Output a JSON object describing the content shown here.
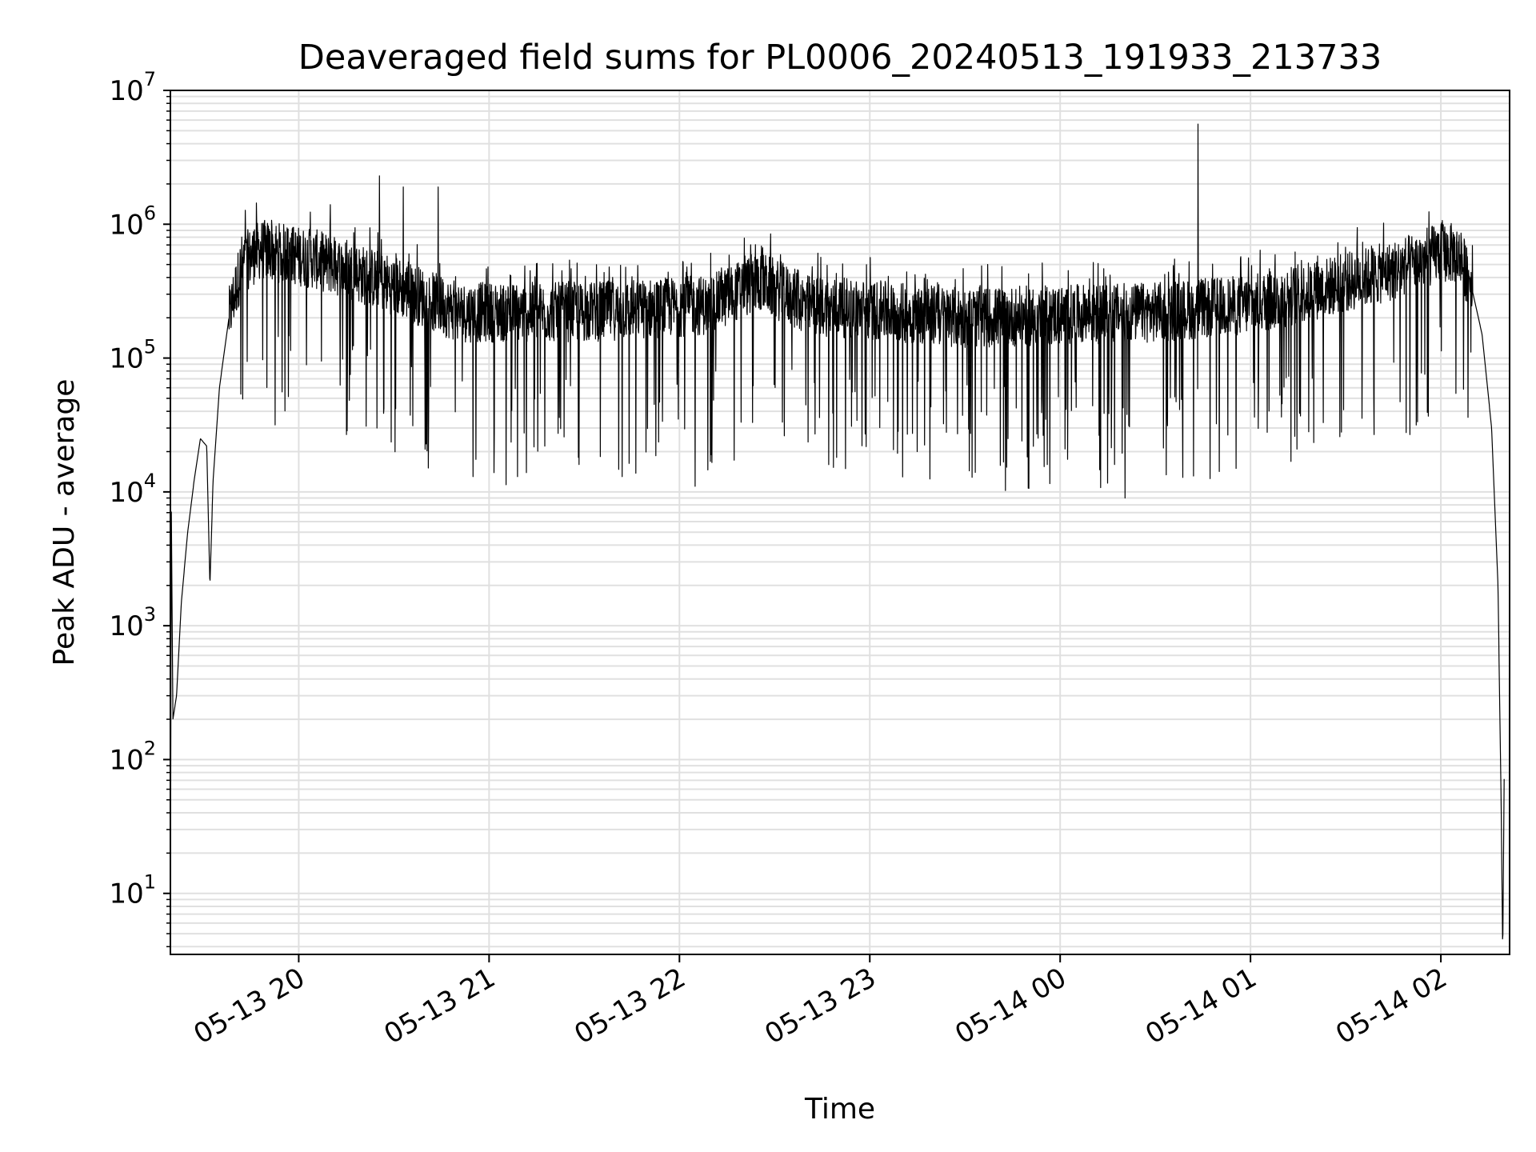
{
  "chart_data": {
    "type": "line",
    "title": "Deaveraged field sums for PL0006_20240513_191933_213733",
    "xlabel": "Time",
    "ylabel": "Peak ADU - average",
    "x_ticks": [
      "05-13 20",
      "05-13 21",
      "05-13 22",
      "05-13 23",
      "05-14 00",
      "05-14 01",
      "05-14 02"
    ],
    "y_scale": "log",
    "y_ticks": [
      {
        "base": "10",
        "exp": "1"
      },
      {
        "base": "10",
        "exp": "2"
      },
      {
        "base": "10",
        "exp": "3"
      },
      {
        "base": "10",
        "exp": "4"
      },
      {
        "base": "10",
        "exp": "5"
      },
      {
        "base": "10",
        "exp": "6"
      },
      {
        "base": "10",
        "exp": "7"
      }
    ],
    "xlim": [
      "2024-05-13 19:19:33",
      "2024-05-14 02:21:40"
    ],
    "ylim": [
      3.5,
      10000000
    ],
    "grid": true,
    "line_color": "#000000",
    "grid_color": "#e0e0e0",
    "profile": [
      {
        "t": "2024-05-13 19:19:33",
        "y": 3.5
      },
      {
        "t": "2024-05-13 19:19:50",
        "y": 8000
      },
      {
        "t": "2024-05-13 19:20:20",
        "y": 200
      },
      {
        "t": "2024-05-13 19:21:30",
        "y": 300
      },
      {
        "t": "2024-05-13 19:23:00",
        "y": 1500
      },
      {
        "t": "2024-05-13 19:25:00",
        "y": 5000
      },
      {
        "t": "2024-05-13 19:27:00",
        "y": 12000
      },
      {
        "t": "2024-05-13 19:29:00",
        "y": 25000
      },
      {
        "t": "2024-05-13 19:31:00",
        "y": 22000
      },
      {
        "t": "2024-05-13 19:32:00",
        "y": 2000
      },
      {
        "t": "2024-05-13 19:33:00",
        "y": 12000
      },
      {
        "t": "2024-05-13 19:35:00",
        "y": 60000
      },
      {
        "t": "2024-05-13 19:38:00",
        "y": 200000
      },
      {
        "t": "2024-05-13 19:42:00",
        "y": 500000
      },
      {
        "t": "2024-05-13 19:48:00",
        "y": 650000
      },
      {
        "t": "2024-05-13 20:05:00",
        "y": 550000
      },
      {
        "t": "2024-05-13 20:30:00",
        "y": 350000
      },
      {
        "t": "2024-05-13 20:50:00",
        "y": 220000
      },
      {
        "t": "2024-05-13 21:30:00",
        "y": 220000
      },
      {
        "t": "2024-05-13 22:10:00",
        "y": 250000
      },
      {
        "t": "2024-05-13 22:25:00",
        "y": 380000
      },
      {
        "t": "2024-05-13 22:40:00",
        "y": 250000
      },
      {
        "t": "2024-05-13 23:30:00",
        "y": 200000
      },
      {
        "t": "2024-05-14 00:30:00",
        "y": 220000
      },
      {
        "t": "2024-05-14 01:00:00",
        "y": 250000
      },
      {
        "t": "2024-05-14 01:20:00",
        "y": 320000
      },
      {
        "t": "2024-05-14 01:45:00",
        "y": 450000
      },
      {
        "t": "2024-05-14 02:00:00",
        "y": 620000
      },
      {
        "t": "2024-05-14 02:05:00",
        "y": 600000
      },
      {
        "t": "2024-05-14 02:09:00",
        "y": 400000
      },
      {
        "t": "2024-05-14 02:13:00",
        "y": 150000
      },
      {
        "t": "2024-05-14 02:16:00",
        "y": 30000
      },
      {
        "t": "2024-05-14 02:18:00",
        "y": 2000
      },
      {
        "t": "2024-05-14 02:19:00",
        "y": 50
      },
      {
        "t": "2024-05-14 02:19:30",
        "y": 3.5
      },
      {
        "t": "2024-05-14 02:20:00",
        "y": 100
      }
    ],
    "spikes": [
      {
        "t": "2024-05-13 20:25:30",
        "y": 2300000
      },
      {
        "t": "2024-05-13 20:33:00",
        "y": 1900000
      },
      {
        "t": "2024-05-13 20:44:00",
        "y": 1900000
      },
      {
        "t": "2024-05-13 20:10:00",
        "y": 1400000
      },
      {
        "t": "2024-05-14 00:43:30",
        "y": 5600000
      },
      {
        "t": "2024-05-13 20:55:00",
        "y": 13000
      },
      {
        "t": "2024-05-13 21:09:00",
        "y": 13000
      },
      {
        "t": "2024-05-13 21:42:00",
        "y": 13000
      },
      {
        "t": "2024-05-13 22:05:00",
        "y": 11000
      },
      {
        "t": "2024-05-14 00:20:30",
        "y": 9000
      },
      {
        "t": "2024-05-13 23:56:00",
        "y": 16000
      },
      {
        "t": "2024-05-13 23:15:00",
        "y": 20000
      }
    ]
  }
}
